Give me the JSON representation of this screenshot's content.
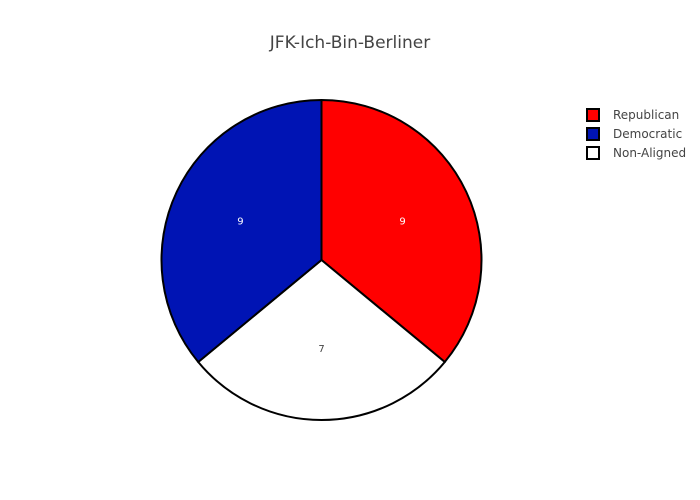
{
  "chart_data": {
    "type": "pie",
    "title": "JFK-Ich-Bin-Berliner",
    "slices": [
      {
        "label": "Republican",
        "value": 9,
        "color": "#ff0000",
        "text_color": "#ffffff"
      },
      {
        "label": "Non-Aligned",
        "value": 7,
        "color": "#ffffff",
        "text_color": "#444444"
      },
      {
        "label": "Democratic",
        "value": 9,
        "color": "#0014b4",
        "text_color": "#ffffff"
      }
    ],
    "legend": {
      "placement": "top-right",
      "entries": [
        {
          "label": "Republican",
          "color": "#ff0000"
        },
        {
          "label": "Democratic",
          "color": "#0014b4"
        },
        {
          "label": "Non-Aligned",
          "color": "#ffffff"
        }
      ]
    },
    "sort": "clockwise-from-top",
    "slice_outline_color": "#000000"
  }
}
